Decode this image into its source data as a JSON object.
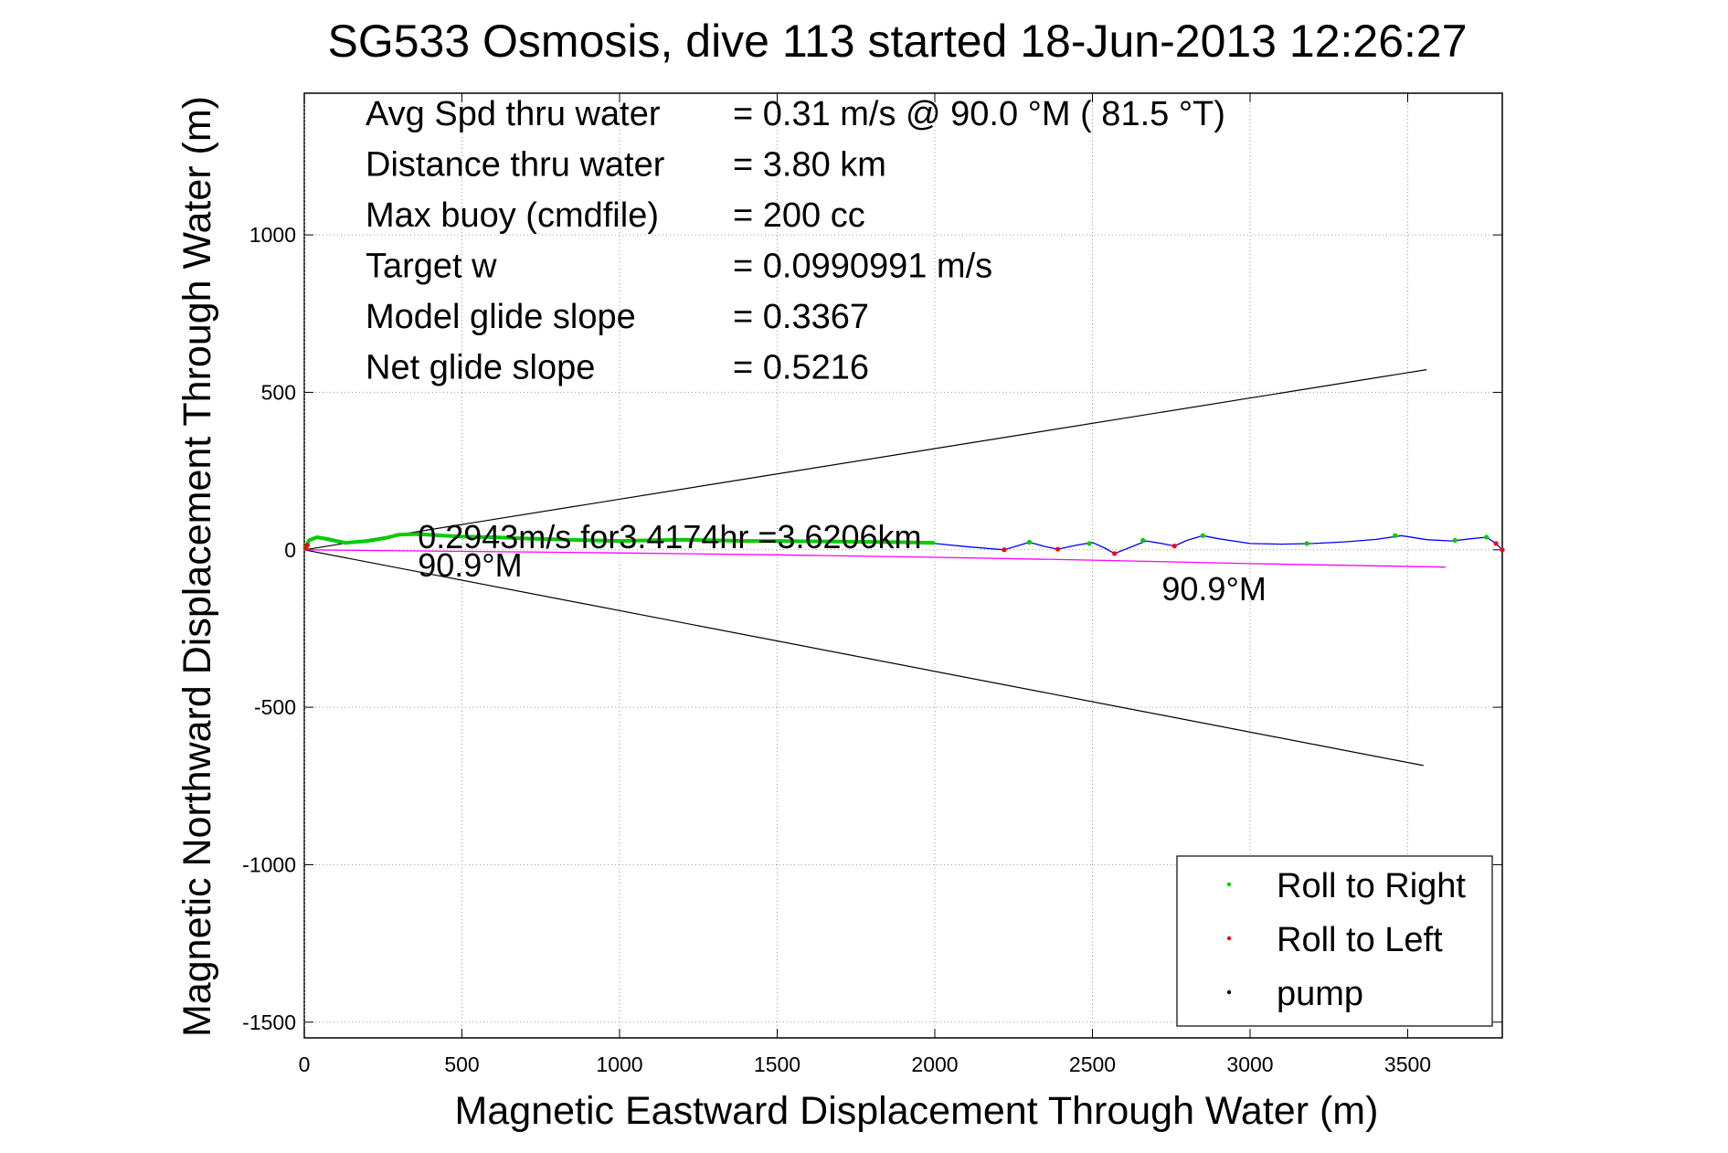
{
  "chart_data": {
    "type": "scatter",
    "title": "SG533 Osmosis, dive 113 started 18-Jun-2013 12:26:27",
    "xlabel": "Magnetic Eastward Displacement Through Water (m)",
    "ylabel": "Magnetic Northward Displacement Through Water (m)",
    "xlim": [
      0,
      3800
    ],
    "ylim": [
      -1550,
      1450
    ],
    "xticks": [
      0,
      500,
      1000,
      1500,
      2000,
      2500,
      3000,
      3500
    ],
    "yticks": [
      -1500,
      -1000,
      -500,
      0,
      500,
      1000
    ],
    "grid": true,
    "legend_position": "bottom-right",
    "stats": [
      {
        "label": "Avg Spd thru water",
        "value": "=  0.31 m/s @  90.0 °M ( 81.5 °T)"
      },
      {
        "label": "Distance thru water",
        "value": "=  3.80 km"
      },
      {
        "label": "Max buoy (cmdfile)",
        "value": "= 200 cc"
      },
      {
        "label": "Target w",
        "value": "= 0.0990991 m/s"
      },
      {
        "label": "Model glide slope",
        "value": "= 0.3367"
      },
      {
        "label": "Net glide slope",
        "value": "= 0.5216"
      }
    ],
    "annotations": [
      {
        "text": "0.2943m/s for3.4174hr =3.6206km",
        "x": 360,
        "y": 5
      },
      {
        "text": "90.9°M",
        "x": 360,
        "y": -85
      },
      {
        "text": "90.9°M",
        "x": 2720,
        "y": -160
      }
    ],
    "legend": [
      {
        "label": "Roll to Right",
        "color": "#00cc00"
      },
      {
        "label": "Roll to Left",
        "color": "#ff0000"
      },
      {
        "label": "pump",
        "color": "#000000"
      }
    ],
    "series": [
      {
        "kind": "line",
        "color": "#000000",
        "x": [
          0,
          3560
        ],
        "y": [
          0,
          572
        ]
      },
      {
        "kind": "line",
        "color": "#000000",
        "x": [
          0,
          3550
        ],
        "y": [
          0,
          -685
        ]
      },
      {
        "kind": "line",
        "color": "#ff00ff",
        "x": [
          0,
          500,
          1000,
          1500,
          2000,
          2500,
          3000,
          3620
        ],
        "y": [
          0,
          -5,
          -10,
          -16,
          -24,
          -33,
          -44,
          -55
        ]
      },
      {
        "kind": "line",
        "color": "#0000ff",
        "x": [
          0,
          10,
          25,
          60,
          120,
          200,
          300,
          400,
          500,
          700,
          900,
          1100,
          1300,
          1500,
          1700,
          1900,
          2000,
          2100,
          2220,
          2260,
          2300,
          2350,
          2390,
          2450,
          2500,
          2540,
          2570,
          2620,
          2670,
          2720,
          2760,
          2800,
          2850,
          2900,
          3000,
          3100,
          3200,
          3300,
          3400,
          3480,
          3560,
          3640,
          3700,
          3750,
          3780,
          3800
        ],
        "y": [
          0,
          25,
          38,
          33,
          20,
          28,
          45,
          50,
          44,
          38,
          30,
          28,
          30,
          28,
          25,
          24,
          20,
          10,
          0,
          12,
          24,
          10,
          2,
          15,
          23,
          5,
          -12,
          8,
          28,
          20,
          12,
          30,
          45,
          35,
          20,
          18,
          20,
          25,
          33,
          45,
          32,
          28,
          35,
          40,
          20,
          0
        ]
      },
      {
        "kind": "line",
        "color": "#00cc00",
        "x": [
          0,
          15,
          40,
          80,
          130,
          200,
          260,
          300,
          360,
          420,
          500,
          600,
          700,
          800,
          900,
          1000,
          1100,
          1200,
          1300,
          1400,
          1500,
          1600,
          1700,
          1800,
          1900,
          2000
        ],
        "y": [
          0,
          30,
          40,
          33,
          22,
          28,
          38,
          48,
          50,
          46,
          42,
          40,
          36,
          33,
          30,
          28,
          30,
          32,
          30,
          28,
          28,
          27,
          26,
          25,
          24,
          22
        ]
      },
      {
        "kind": "points",
        "color": "#00cc00",
        "x": [
          2300,
          2490,
          2660,
          2850,
          3180,
          3460,
          3650,
          3750
        ],
        "y": [
          24,
          20,
          30,
          45,
          20,
          45,
          30,
          40
        ]
      },
      {
        "kind": "points",
        "color": "#ff0000",
        "x": [
          5,
          10,
          2220,
          2390,
          2570,
          2760,
          3780,
          3800
        ],
        "y": [
          5,
          15,
          0,
          2,
          -12,
          12,
          20,
          0
        ]
      }
    ]
  }
}
